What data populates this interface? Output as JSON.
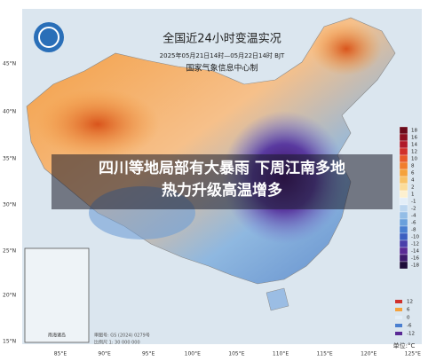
{
  "header": {
    "title": "全国近24小时变温实况",
    "subtitle": "2025年05月21日14时—05月22日14时 BJT",
    "issuer": "国家气象信息中心制"
  },
  "headline": [
    "四川等地局部有大暴雨 下周江南多地",
    "热力升级高温增多"
  ],
  "lat_labels": [
    "45°N",
    "40°N",
    "35°N",
    "30°N",
    "25°N",
    "20°N",
    "15°N"
  ],
  "lon_labels": [
    "85°E",
    "90°E",
    "95°E",
    "100°E",
    "105°E",
    "110°E",
    "115°E",
    "120°E",
    "125°E"
  ],
  "legend": {
    "values": [
      18,
      16,
      14,
      12,
      10,
      8,
      6,
      4,
      2,
      1,
      -1,
      -2,
      -4,
      -6,
      -8,
      -10,
      -12,
      -14,
      -16,
      -18
    ],
    "unit": "单位:°C"
  },
  "small_legend": [
    12,
    6,
    0,
    -6,
    -12
  ],
  "inset": {
    "label": "南海诸岛"
  },
  "footer": {
    "approval": "审图号: GS (2024) 0279号",
    "scale": "比例尺 1: 30 000 000"
  }
}
